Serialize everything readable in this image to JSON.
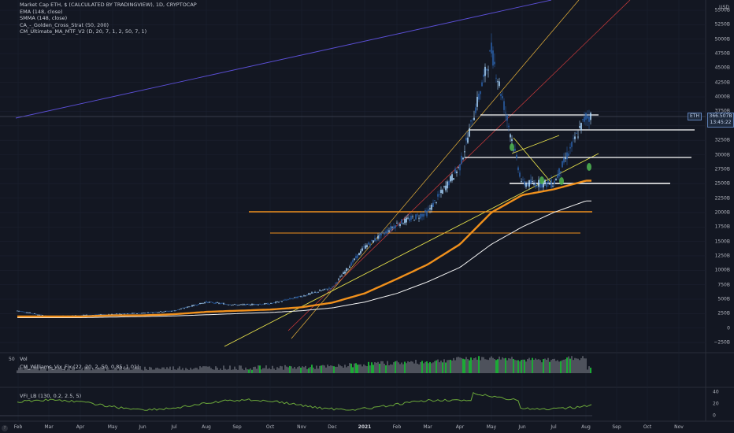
{
  "legend": {
    "title": "Market Cap ETH, $ (CALCULATED BY TRADINGVIEW), 1D, CRYPTOCAP",
    "ema": "EMA (148, close)",
    "smma": "SMMA (148, close)",
    "golden": "CA_-_Golden_Cross_Strat (50, 200)",
    "cm": "CM_Ultimate_MA_MTF_V2 (D, 20, 7, 1, 2, 50, 7, 1)"
  },
  "price_axis": {
    "currency": "USD",
    "ticks": [
      "5500B",
      "5250B",
      "5000B",
      "4750B",
      "4500B",
      "4250B",
      "4000B",
      "3750B",
      "3500B",
      "3250B",
      "3000B",
      "2750B",
      "2500B",
      "2250B",
      "2000B",
      "1750B",
      "1500B",
      "1250B",
      "1000B",
      "750B",
      "500B",
      "250B",
      "0",
      "−250B"
    ]
  },
  "price_tag": {
    "symbol": "ETH",
    "value": "366.507B",
    "countdown": "13:45:22"
  },
  "date_axis": {
    "labels": [
      "Feb",
      "Mar",
      "Apr",
      "May",
      "Jun",
      "Jul",
      "Aug",
      "Sep",
      "Oct",
      "Nov",
      "Dec",
      "2021",
      "Feb",
      "Mar",
      "Apr",
      "May",
      "Jun",
      "Jul",
      "Aug",
      "Sep",
      "Oct",
      "Nov"
    ],
    "year_label": "2021"
  },
  "volume_pane": {
    "label": "Vol",
    "scale": "50",
    "cm_label": "CM_Williams_Vix_Fix (22, 20, 2, 50, 0.85, 1.01)"
  },
  "vfi_pane": {
    "label": "VFI_LB (130, 0.2, 2.5, 5)",
    "ticks": [
      "40",
      "20",
      "0"
    ]
  },
  "colors": {
    "background": "#131722",
    "up": "#a9d6ff",
    "down": "#2a5fa6",
    "ema": "#f0901c",
    "smma": "#f3f3f3",
    "volume": "#5d606b",
    "volume_high": "#1fcf3c",
    "vfi": "#6ba83a"
  },
  "chart_data": {
    "type": "line",
    "title": "Market Cap ETH, $ (CALCULATED BY TRADINGVIEW), 1D, CRYPTOCAP",
    "x": [
      "2020-02",
      "2020-03",
      "2020-04",
      "2020-05",
      "2020-06",
      "2020-07",
      "2020-08",
      "2020-09",
      "2020-10",
      "2020-11",
      "2020-12",
      "2021-01",
      "2021-02",
      "2021-03",
      "2021-04",
      "2021-05",
      "2021-06",
      "2021-07",
      "2021-08"
    ],
    "series": [
      {
        "name": "ETH",
        "values": [
          30,
          20,
          22,
          24,
          26,
          30,
          45,
          40,
          42,
          55,
          70,
          140,
          180,
          200,
          280,
          480,
          250,
          250,
          366
        ]
      },
      {
        "name": "EMA (148, close)",
        "values": [
          20,
          20,
          20,
          22,
          22,
          24,
          28,
          30,
          32,
          36,
          44,
          60,
          85,
          110,
          145,
          200,
          230,
          240,
          255
        ]
      },
      {
        "name": "SMMA (148, close)",
        "values": [
          18,
          18,
          18,
          19,
          20,
          21,
          23,
          25,
          27,
          30,
          35,
          45,
          60,
          80,
          105,
          145,
          175,
          200,
          220
        ]
      }
    ],
    "ylim": [
      -250,
      5500
    ],
    "ylabel": "USD"
  }
}
